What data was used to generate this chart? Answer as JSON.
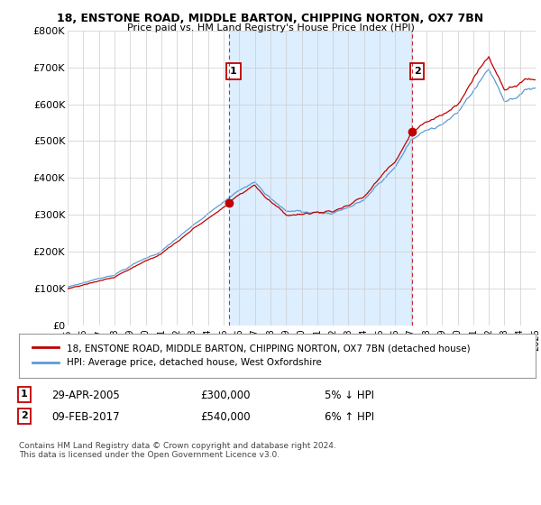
{
  "title1": "18, ENSTONE ROAD, MIDDLE BARTON, CHIPPING NORTON, OX7 7BN",
  "title2": "Price paid vs. HM Land Registry's House Price Index (HPI)",
  "ylabel_ticks": [
    "£0",
    "£100K",
    "£200K",
    "£300K",
    "£400K",
    "£500K",
    "£600K",
    "£700K",
    "£800K"
  ],
  "ytick_values": [
    0,
    100000,
    200000,
    300000,
    400000,
    500000,
    600000,
    700000,
    800000
  ],
  "ylim": [
    0,
    800000
  ],
  "hpi_color": "#5b9bd5",
  "price_color": "#c00000",
  "shade_color": "#ddeeff",
  "marker1_year": 2005.33,
  "marker1_price": 300000,
  "marker2_year": 2017.1,
  "marker2_price": 540000,
  "legend_line1": "18, ENSTONE ROAD, MIDDLE BARTON, CHIPPING NORTON, OX7 7BN (detached house)",
  "legend_line2": "HPI: Average price, detached house, West Oxfordshire",
  "note1_label": "1",
  "note1_date": "29-APR-2005",
  "note1_price": "£300,000",
  "note1_hpi": "5% ↓ HPI",
  "note2_label": "2",
  "note2_date": "09-FEB-2017",
  "note2_price": "£540,000",
  "note2_hpi": "6% ↑ HPI",
  "footer": "Contains HM Land Registry data © Crown copyright and database right 2024.\nThis data is licensed under the Open Government Licence v3.0.",
  "bg_color": "#ffffff",
  "grid_color": "#cccccc"
}
